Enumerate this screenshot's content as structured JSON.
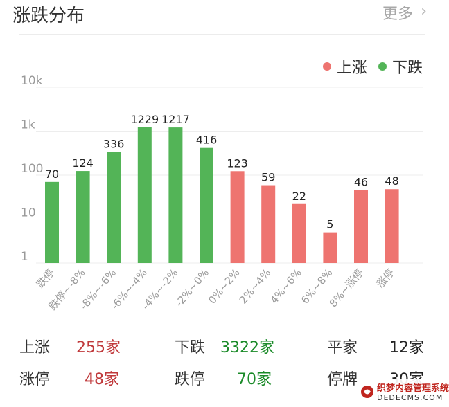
{
  "header": {
    "title": "涨跌分布",
    "more_label": "更多",
    "more_icon": "chevron-right-icon"
  },
  "legend": {
    "up_label": "上涨",
    "down_label": "下跌"
  },
  "colors": {
    "up": "#ee7470",
    "down": "#53b457",
    "up_text": "#c0393b",
    "down_text": "#1a8a28"
  },
  "chart_data": {
    "type": "bar",
    "scale": "log",
    "y_ticks": [
      "1",
      "10",
      "100",
      "1k",
      "10k"
    ],
    "ylim": [
      1,
      10000
    ],
    "grid": true,
    "legend_position": "top-right",
    "categories": [
      "跌停",
      "跌停~-8%",
      "-8%~-6%",
      "-6%~-4%",
      "-4%~-2%",
      "-2%~0%",
      "0%~2%",
      "2%~4%",
      "4%~6%",
      "6%~8%",
      "8%~涨停",
      "涨停"
    ],
    "values": [
      70,
      124,
      336,
      1229,
      1217,
      416,
      123,
      59,
      22,
      5,
      46,
      48
    ],
    "direction": [
      "down",
      "down",
      "down",
      "down",
      "down",
      "down",
      "up",
      "up",
      "up",
      "up",
      "up",
      "up"
    ],
    "series": [
      {
        "name": "上涨",
        "color": "#ee7470"
      },
      {
        "name": "下跌",
        "color": "#53b457"
      }
    ]
  },
  "stats": {
    "up": {
      "label": "上涨",
      "value": "255家"
    },
    "down": {
      "label": "下跌",
      "value": "3322家"
    },
    "flat": {
      "label": "平家",
      "value": "12家"
    },
    "limit_up": {
      "label": "涨停",
      "value": "48家"
    },
    "limit_down": {
      "label": "跌停",
      "value": "70家"
    },
    "suspended": {
      "label": "停牌",
      "value": "30家"
    }
  },
  "watermark": {
    "line1": "织梦内容管理系统",
    "line2": "DEDECMS.COM"
  }
}
